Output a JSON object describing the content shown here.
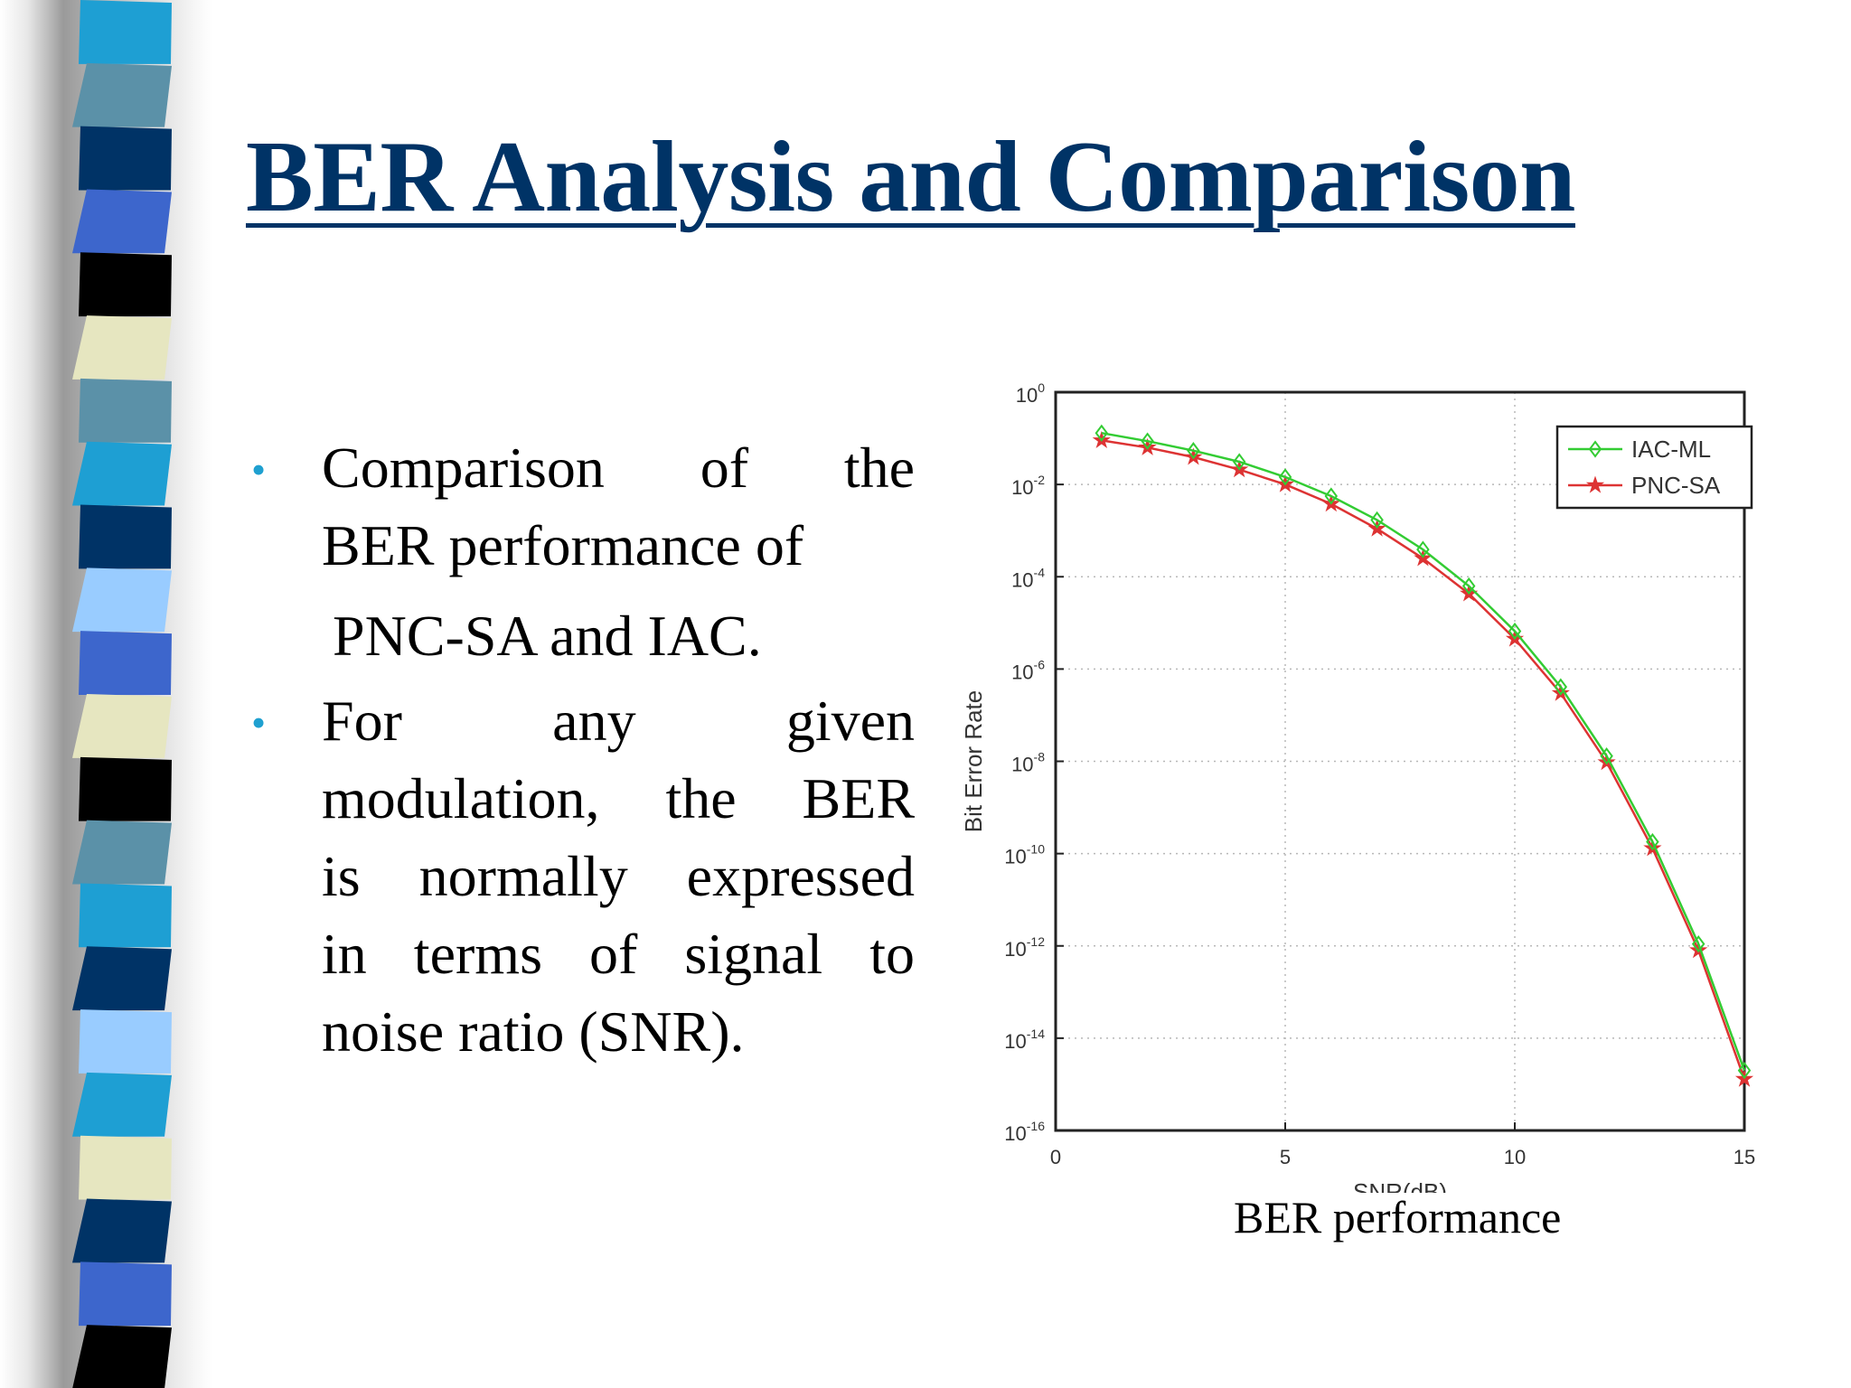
{
  "slide": {
    "title": "BER Analysis and Comparison",
    "bullets": [
      {
        "lines": [
          "Comparison of the",
          "BER performance of",
          "PNC-SA and IAC."
        ]
      },
      {
        "lines": [
          "For any given",
          "modulation, the BER",
          "is normally expressed",
          "in terms of signal to",
          "noise ratio (SNR)."
        ]
      }
    ],
    "caption": "BER performance",
    "colors": {
      "title": "#003366",
      "bullet": "#1fa0d0",
      "stripes": [
        "#1e9fd3",
        "#5b91a8",
        "#003366",
        "#3d66cc",
        "#000000",
        "#e6e6c0",
        "#5b91a8",
        "#1e9fd3",
        "#003366",
        "#99ccff",
        "#3d66cc",
        "#e6e6c0",
        "#000000",
        "#5b91a8",
        "#1e9fd3",
        "#003366",
        "#99ccff",
        "#1e9fd3",
        "#e6e6c0",
        "#003366",
        "#3d66cc",
        "#000000"
      ]
    }
  },
  "chart_data": {
    "type": "line",
    "title": "",
    "xlabel": "SNR(dB)",
    "ylabel": "Bit Error Rate",
    "xlim": [
      0,
      15
    ],
    "ylim": [
      1e-16,
      1
    ],
    "yscale": "log",
    "grid": true,
    "legend_position": "top-right",
    "x_ticks": [
      0,
      5,
      10,
      15
    ],
    "y_ticks": [
      {
        "base": "10",
        "exp": "0",
        "value": 1
      },
      {
        "base": "10",
        "exp": "-2",
        "value": 0.01
      },
      {
        "base": "10",
        "exp": "-4",
        "value": 0.0001
      },
      {
        "base": "10",
        "exp": "-6",
        "value": 1e-06
      },
      {
        "base": "10",
        "exp": "-8",
        "value": 1e-08
      },
      {
        "base": "10",
        "exp": "-10",
        "value": 1e-10
      },
      {
        "base": "10",
        "exp": "-12",
        "value": 1e-12
      },
      {
        "base": "10",
        "exp": "-14",
        "value": 1e-14
      },
      {
        "base": "10",
        "exp": "-16",
        "value": 1e-16
      }
    ],
    "x": [
      1,
      2,
      3,
      4,
      5,
      6,
      7,
      8,
      9,
      10,
      11,
      12,
      13,
      14,
      15
    ],
    "series": [
      {
        "name": "IAC-ML",
        "color": "#33cc33",
        "marker": "diamond",
        "values": [
          0.13,
          0.087,
          0.054,
          0.031,
          0.0145,
          0.0056,
          0.0017,
          0.00039,
          6.3e-05,
          6.6e-06,
          4.1e-07,
          1.3e-08,
          1.8e-10,
          1.1e-12,
          2e-15
        ]
      },
      {
        "name": "PNC-SA",
        "color": "#dd3333",
        "marker": "star",
        "values": [
          0.09,
          0.063,
          0.039,
          0.021,
          0.01,
          0.0038,
          0.0011,
          0.00025,
          4.3e-05,
          4.5e-06,
          3e-07,
          9.5e-09,
          1.3e-10,
          8e-13,
          1.3e-15
        ]
      }
    ]
  }
}
